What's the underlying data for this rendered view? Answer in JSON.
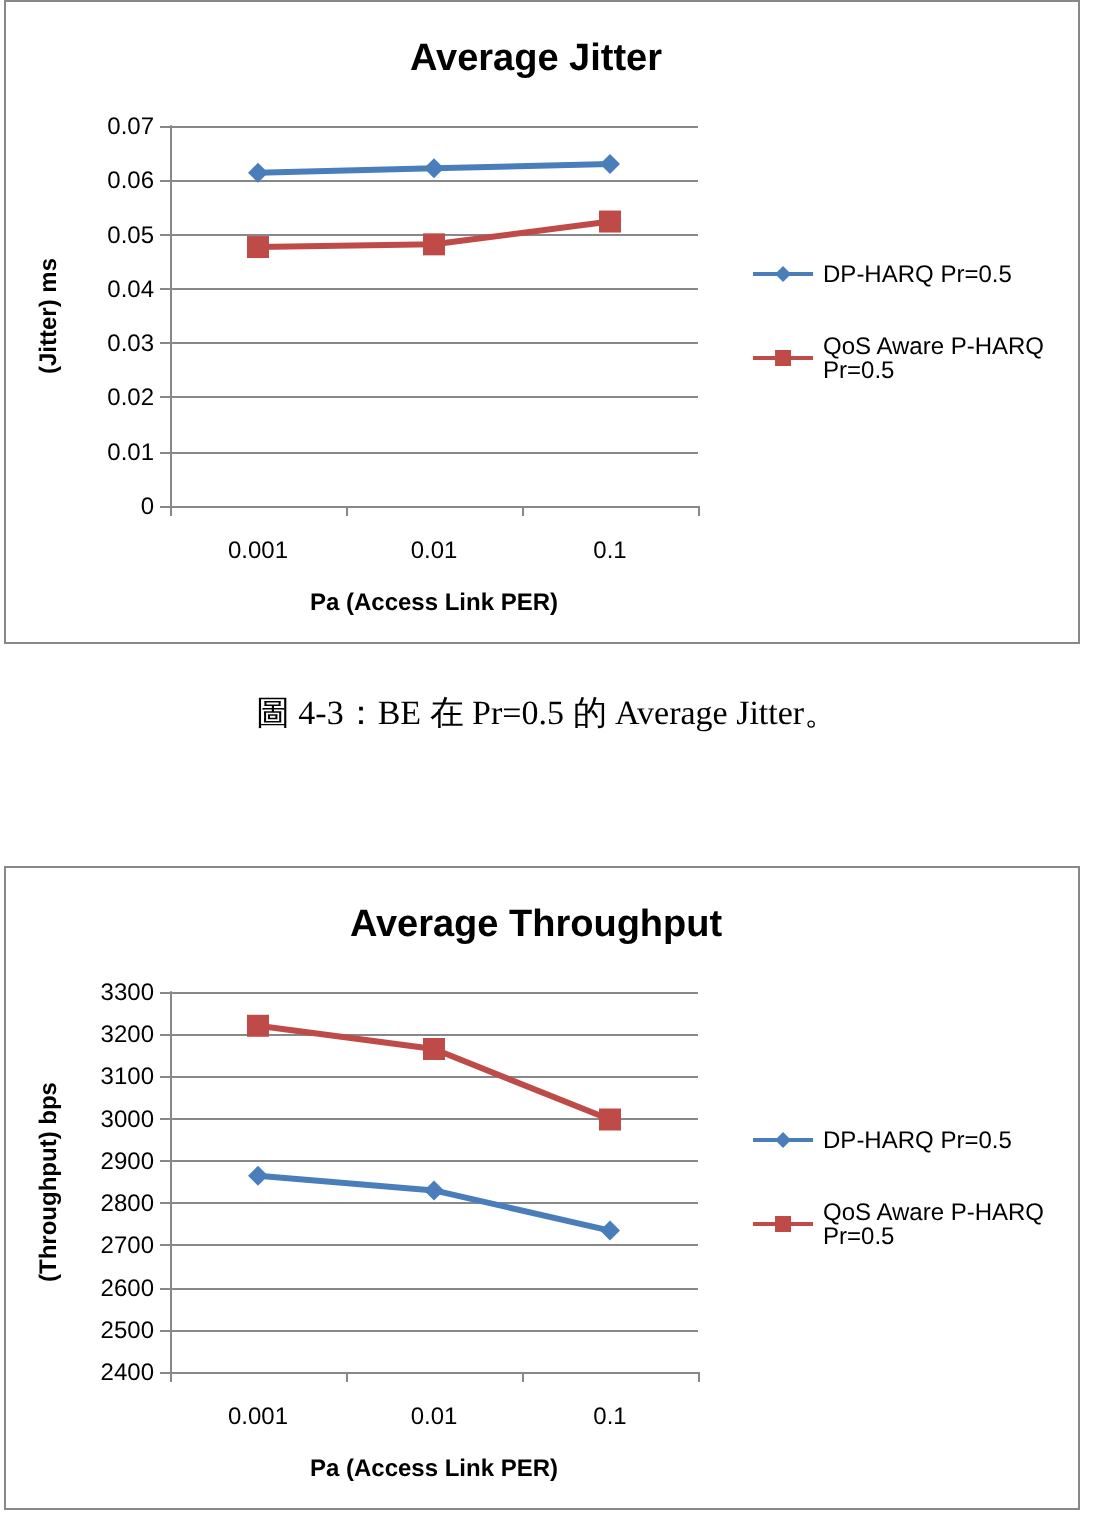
{
  "chart_data": [
    {
      "type": "line",
      "title": "Average Jitter",
      "xlabel": "Pa (Access Link PER)",
      "ylabel": "(Jitter) ms",
      "categories": [
        "0.001",
        "0.01",
        "0.1"
      ],
      "series": [
        {
          "name": "DP-HARQ Pr=0.5",
          "color": "#4a7ebb",
          "marker": "diamond",
          "values": [
            0.0614,
            0.0622,
            0.063
          ]
        },
        {
          "name": "QoS Aware P-HARQ Pr=0.5",
          "color": "#be4b48",
          "marker": "square",
          "values": [
            0.0477,
            0.0482,
            0.0524
          ]
        }
      ],
      "ylim": [
        0,
        0.07
      ],
      "yticks": [
        0,
        0.01,
        0.02,
        0.03,
        0.04,
        0.05,
        0.06,
        0.07
      ],
      "grid": "y",
      "legend": "right",
      "annotations": [
        "圖 4-3：BE 在 Pr=0.5 的 Average Jitter。"
      ]
    },
    {
      "type": "line",
      "title": "Average Throughput",
      "xlabel": "Pa (Access Link PER)",
      "ylabel": "(Throughput) bps",
      "categories": [
        "0.001",
        "0.01",
        "0.1"
      ],
      "series": [
        {
          "name": "DP-HARQ Pr=0.5",
          "color": "#4a7ebb",
          "marker": "diamond",
          "values": [
            2865,
            2830,
            2735
          ]
        },
        {
          "name": "QoS Aware P-HARQ Pr=0.5",
          "color": "#be4b48",
          "marker": "square",
          "values": [
            3220,
            3165,
            2998
          ]
        }
      ],
      "ylim": [
        2400,
        3300
      ],
      "yticks": [
        2400,
        2500,
        2600,
        2700,
        2800,
        2900,
        3000,
        3100,
        3200,
        3300
      ],
      "grid": "y",
      "legend": "right"
    }
  ]
}
